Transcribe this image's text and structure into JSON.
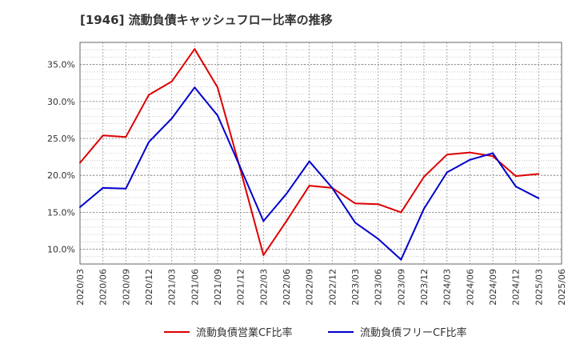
{
  "chart_data": {
    "type": "line",
    "title": "[1946]  流動負債キャッシュフロー比率の推移",
    "xlabel": "",
    "ylabel": "",
    "x": [
      "2020/03",
      "2020/06",
      "2020/09",
      "2020/12",
      "2021/03",
      "2021/06",
      "2021/09",
      "2021/12",
      "2022/03",
      "2022/06",
      "2022/09",
      "2022/12",
      "2023/03",
      "2023/06",
      "2023/09",
      "2023/12",
      "2024/03",
      "2024/06",
      "2024/09",
      "2024/12",
      "2025/03"
    ],
    "x_tick_labels": [
      "2020/03",
      "2020/06",
      "2020/09",
      "2020/12",
      "2021/03",
      "2021/06",
      "2021/09",
      "2021/12",
      "2022/03",
      "2022/06",
      "2022/09",
      "2022/12",
      "2023/03",
      "2023/06",
      "2023/09",
      "2023/12",
      "2024/03",
      "2024/06",
      "2024/09",
      "2024/12",
      "2025/03",
      "2025/06"
    ],
    "y_ticks": [
      10.0,
      15.0,
      20.0,
      25.0,
      30.0,
      35.0
    ],
    "y_tick_labels": [
      "10.0%",
      "15.0%",
      "20.0%",
      "25.0%",
      "30.0%",
      "35.0%"
    ],
    "ylim": [
      8.0,
      38.0
    ],
    "grid": true,
    "legend_position": "bottom",
    "series": [
      {
        "name": "流動負債営業CF比率",
        "color": "#dd0000",
        "values": [
          21.7,
          25.4,
          25.2,
          30.9,
          32.7,
          37.1,
          31.9,
          20.7,
          9.2,
          13.8,
          18.6,
          18.3,
          16.2,
          16.1,
          15.0,
          19.8,
          22.8,
          23.1,
          22.6,
          19.9,
          20.2
        ]
      },
      {
        "name": "流動負債フリーCF比率",
        "color": "#0000cc",
        "values": [
          15.7,
          18.3,
          18.2,
          24.5,
          27.7,
          31.9,
          28.1,
          21.0,
          13.8,
          17.5,
          21.9,
          18.3,
          13.6,
          11.4,
          8.6,
          15.5,
          20.4,
          22.1,
          23.0,
          18.5,
          16.9
        ]
      }
    ]
  }
}
